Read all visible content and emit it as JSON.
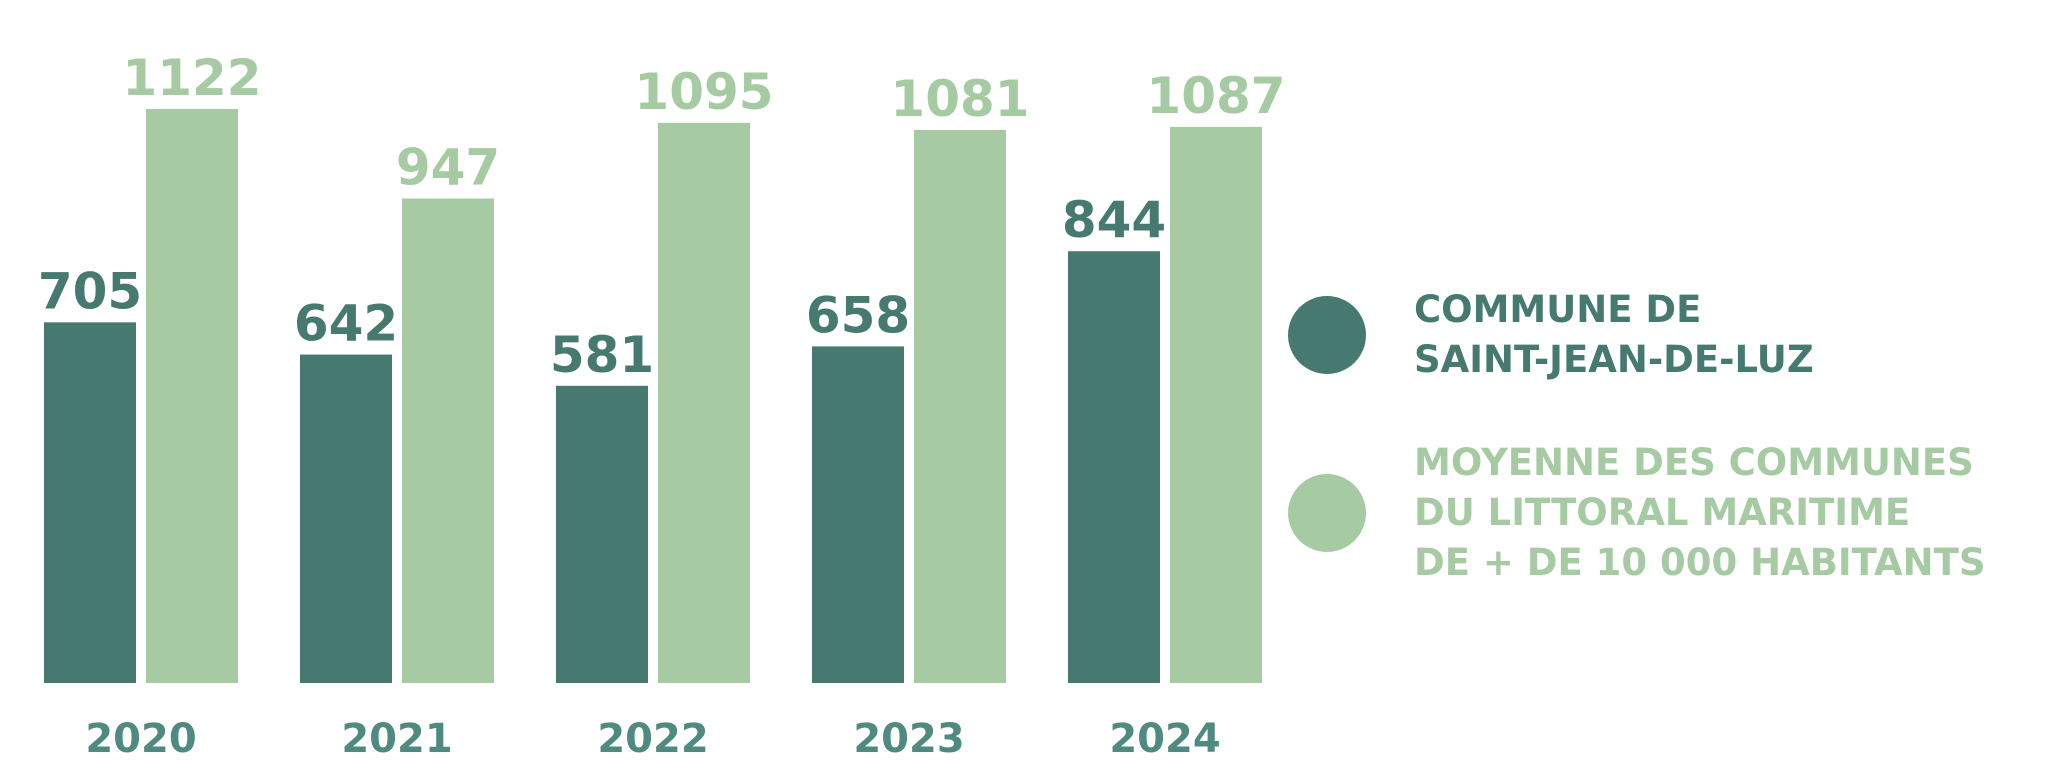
{
  "chart_data": {
    "type": "bar",
    "categories": [
      "2020",
      "2021",
      "2022",
      "2023",
      "2024"
    ],
    "series": [
      {
        "name": "COMMUNE DE\nSAINT-JEAN-DE-LUZ",
        "values": [
          705,
          642,
          581,
          658,
          844
        ],
        "color": "#467A71"
      },
      {
        "name": "MOYENNE DES COMMUNES\nDU LITTORAL MARITIME\nDE + DE 10 000 HABITANTS",
        "values": [
          1122,
          947,
          1095,
          1081,
          1087
        ],
        "color": "#A6CBA3"
      }
    ],
    "ylim": [
      0,
      1122
    ],
    "grid": false,
    "legend_position": "right",
    "tick_color": "#4E8A80"
  }
}
